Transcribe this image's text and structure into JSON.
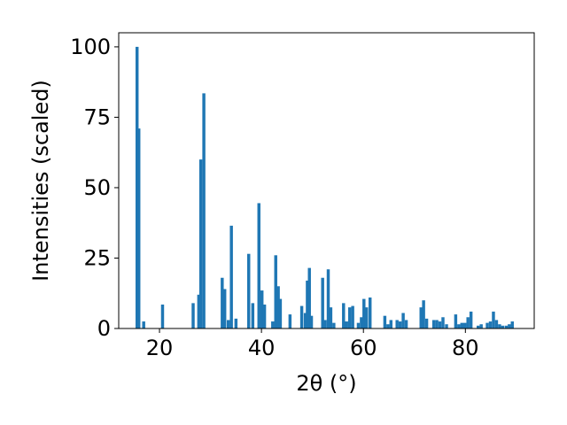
{
  "chart_data": {
    "type": "bar",
    "xlabel": "2θ (°)",
    "ylabel": "Intensities (scaled)",
    "xlim": [
      12,
      93.5
    ],
    "ylim": [
      0,
      105
    ],
    "xticks": [
      20,
      40,
      60,
      80
    ],
    "yticks": [
      0,
      25,
      50,
      75,
      100
    ],
    "bar_width": 0.6,
    "bar_color": "#1f77b4",
    "grid": false,
    "legend": "none",
    "points": [
      {
        "x": 15.6,
        "y": 100.0
      },
      {
        "x": 15.95,
        "y": 71.0
      },
      {
        "x": 16.9,
        "y": 2.5
      },
      {
        "x": 20.6,
        "y": 8.5
      },
      {
        "x": 26.6,
        "y": 9.0
      },
      {
        "x": 27.7,
        "y": 12.0
      },
      {
        "x": 28.1,
        "y": 60.0
      },
      {
        "x": 28.7,
        "y": 83.5
      },
      {
        "x": 32.3,
        "y": 18.0
      },
      {
        "x": 32.8,
        "y": 14.0
      },
      {
        "x": 33.5,
        "y": 3.0
      },
      {
        "x": 34.1,
        "y": 36.5
      },
      {
        "x": 35.0,
        "y": 3.5
      },
      {
        "x": 37.5,
        "y": 26.5
      },
      {
        "x": 38.3,
        "y": 9.0
      },
      {
        "x": 39.5,
        "y": 44.5
      },
      {
        "x": 40.1,
        "y": 13.5
      },
      {
        "x": 40.6,
        "y": 8.5
      },
      {
        "x": 42.2,
        "y": 2.5
      },
      {
        "x": 42.8,
        "y": 26.0
      },
      {
        "x": 43.3,
        "y": 15.0
      },
      {
        "x": 43.7,
        "y": 10.5
      },
      {
        "x": 45.6,
        "y": 5.0
      },
      {
        "x": 47.9,
        "y": 8.0
      },
      {
        "x": 48.6,
        "y": 5.5
      },
      {
        "x": 49.0,
        "y": 17.0
      },
      {
        "x": 49.4,
        "y": 21.5
      },
      {
        "x": 49.8,
        "y": 4.5
      },
      {
        "x": 52.0,
        "y": 18.0
      },
      {
        "x": 52.5,
        "y": 3.0
      },
      {
        "x": 53.1,
        "y": 21.0
      },
      {
        "x": 53.6,
        "y": 7.5
      },
      {
        "x": 54.2,
        "y": 2.0
      },
      {
        "x": 56.1,
        "y": 9.0
      },
      {
        "x": 56.7,
        "y": 2.5
      },
      {
        "x": 57.3,
        "y": 7.5
      },
      {
        "x": 57.9,
        "y": 8.0
      },
      {
        "x": 59.0,
        "y": 2.0
      },
      {
        "x": 59.6,
        "y": 4.0
      },
      {
        "x": 60.1,
        "y": 10.5
      },
      {
        "x": 60.6,
        "y": 7.5
      },
      {
        "x": 61.3,
        "y": 11.0
      },
      {
        "x": 64.2,
        "y": 4.5
      },
      {
        "x": 64.8,
        "y": 1.5
      },
      {
        "x": 65.4,
        "y": 3.0
      },
      {
        "x": 66.6,
        "y": 3.0
      },
      {
        "x": 67.2,
        "y": 2.5
      },
      {
        "x": 67.8,
        "y": 5.5
      },
      {
        "x": 68.4,
        "y": 3.0
      },
      {
        "x": 71.3,
        "y": 7.5
      },
      {
        "x": 71.8,
        "y": 10.0
      },
      {
        "x": 72.4,
        "y": 3.5
      },
      {
        "x": 73.8,
        "y": 3.0
      },
      {
        "x": 74.4,
        "y": 3.0
      },
      {
        "x": 75.0,
        "y": 2.5
      },
      {
        "x": 75.6,
        "y": 4.0
      },
      {
        "x": 76.3,
        "y": 1.5
      },
      {
        "x": 78.1,
        "y": 5.0
      },
      {
        "x": 78.7,
        "y": 1.5
      },
      {
        "x": 79.3,
        "y": 2.0
      },
      {
        "x": 79.9,
        "y": 2.0
      },
      {
        "x": 80.5,
        "y": 4.0
      },
      {
        "x": 81.1,
        "y": 6.0
      },
      {
        "x": 82.5,
        "y": 1.0
      },
      {
        "x": 83.1,
        "y": 1.5
      },
      {
        "x": 84.3,
        "y": 2.0
      },
      {
        "x": 84.9,
        "y": 2.5
      },
      {
        "x": 85.5,
        "y": 6.0
      },
      {
        "x": 86.1,
        "y": 3.0
      },
      {
        "x": 86.7,
        "y": 1.5
      },
      {
        "x": 87.3,
        "y": 1.0
      },
      {
        "x": 88.0,
        "y": 1.0
      },
      {
        "x": 88.6,
        "y": 1.5
      },
      {
        "x": 89.2,
        "y": 2.5
      }
    ]
  }
}
